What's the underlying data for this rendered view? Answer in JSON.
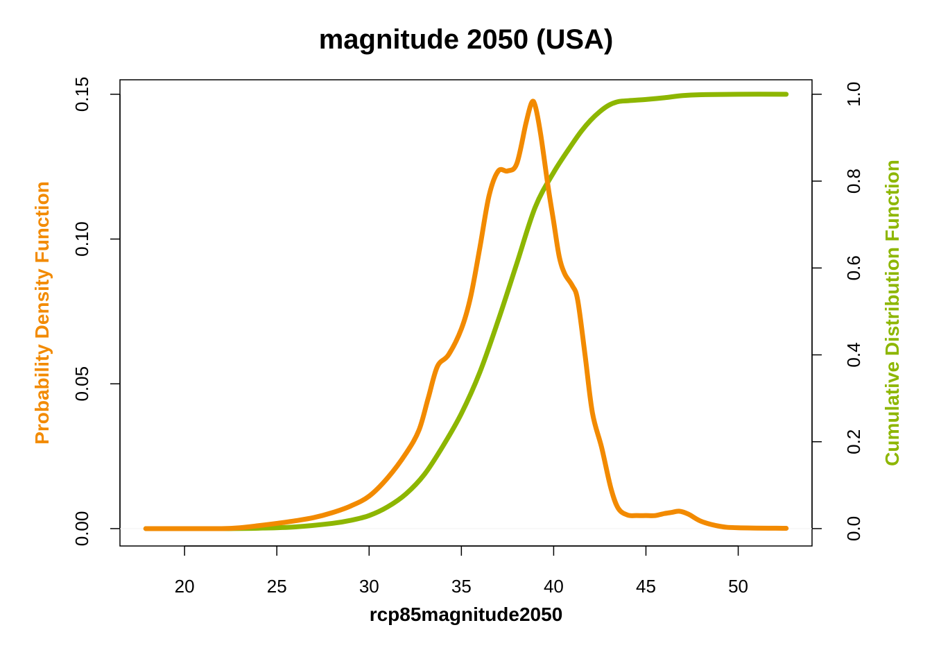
{
  "chart_data": {
    "type": "line",
    "title": "magnitude 2050 (USA)",
    "xlabel": "rcp85magnitude2050",
    "ylabel_left": "Probability Density Function",
    "ylabel_right": "Cumulative Distribution Function",
    "xlim": [
      16.5,
      54
    ],
    "ylim_left": [
      -0.006,
      0.155
    ],
    "ylim_right": [
      -0.04,
      1.0333
    ],
    "x_ticks": [
      "20",
      "25",
      "30",
      "35",
      "40",
      "45",
      "50"
    ],
    "y_left_ticks": [
      "0.00",
      "0.05",
      "0.10",
      "0.15"
    ],
    "y_right_ticks": [
      "0.0",
      "0.2",
      "0.4",
      "0.6",
      "0.8",
      "1.0"
    ],
    "grid": false,
    "colors": {
      "pdf": "#F28A00",
      "cdf": "#8DB600"
    },
    "series": [
      {
        "axis": "left",
        "x": [
          17.9,
          20,
          22,
          23,
          24,
          25,
          26,
          27,
          28,
          29,
          30,
          31,
          32,
          32.7,
          33.2,
          33.7,
          34.3,
          35,
          35.5,
          36,
          36.5,
          37,
          37.5,
          38,
          38.5,
          38.8,
          39,
          39.3,
          39.7,
          40,
          40.3,
          40.6,
          41,
          41.3,
          41.7,
          42.1,
          42.6,
          43.1,
          43.5,
          44,
          44.5,
          45,
          45.5,
          46,
          46.4,
          46.8,
          47.3,
          48,
          49,
          50,
          52.6
        ],
        "values": [
          0.0,
          0.0,
          0.0,
          0.0003,
          0.001,
          0.0018,
          0.0027,
          0.0038,
          0.0055,
          0.0078,
          0.0112,
          0.0175,
          0.026,
          0.034,
          0.045,
          0.056,
          0.06,
          0.069,
          0.08,
          0.097,
          0.115,
          0.1235,
          0.1235,
          0.126,
          0.14,
          0.147,
          0.146,
          0.136,
          0.118,
          0.106,
          0.094,
          0.088,
          0.084,
          0.079,
          0.06,
          0.04,
          0.028,
          0.014,
          0.007,
          0.0047,
          0.0045,
          0.0045,
          0.0045,
          0.0052,
          0.0056,
          0.006,
          0.005,
          0.0025,
          0.0008,
          0.0003,
          0.0001
        ]
      },
      {
        "axis": "right",
        "x": [
          17.9,
          20,
          22,
          24,
          26,
          28,
          29,
          30,
          31,
          32,
          33,
          34,
          35,
          36,
          37,
          38,
          39,
          40,
          41,
          41.5,
          42,
          42.5,
          43,
          43.5,
          44,
          45,
          46,
          47,
          48,
          50,
          52.6
        ],
        "values": [
          0.0,
          0.0,
          0.0,
          0.001,
          0.004,
          0.012,
          0.019,
          0.03,
          0.05,
          0.08,
          0.125,
          0.19,
          0.265,
          0.36,
          0.48,
          0.61,
          0.74,
          0.82,
          0.885,
          0.915,
          0.94,
          0.96,
          0.975,
          0.983,
          0.985,
          0.988,
          0.992,
          0.997,
          0.999,
          1.0,
          1.0
        ]
      }
    ]
  }
}
